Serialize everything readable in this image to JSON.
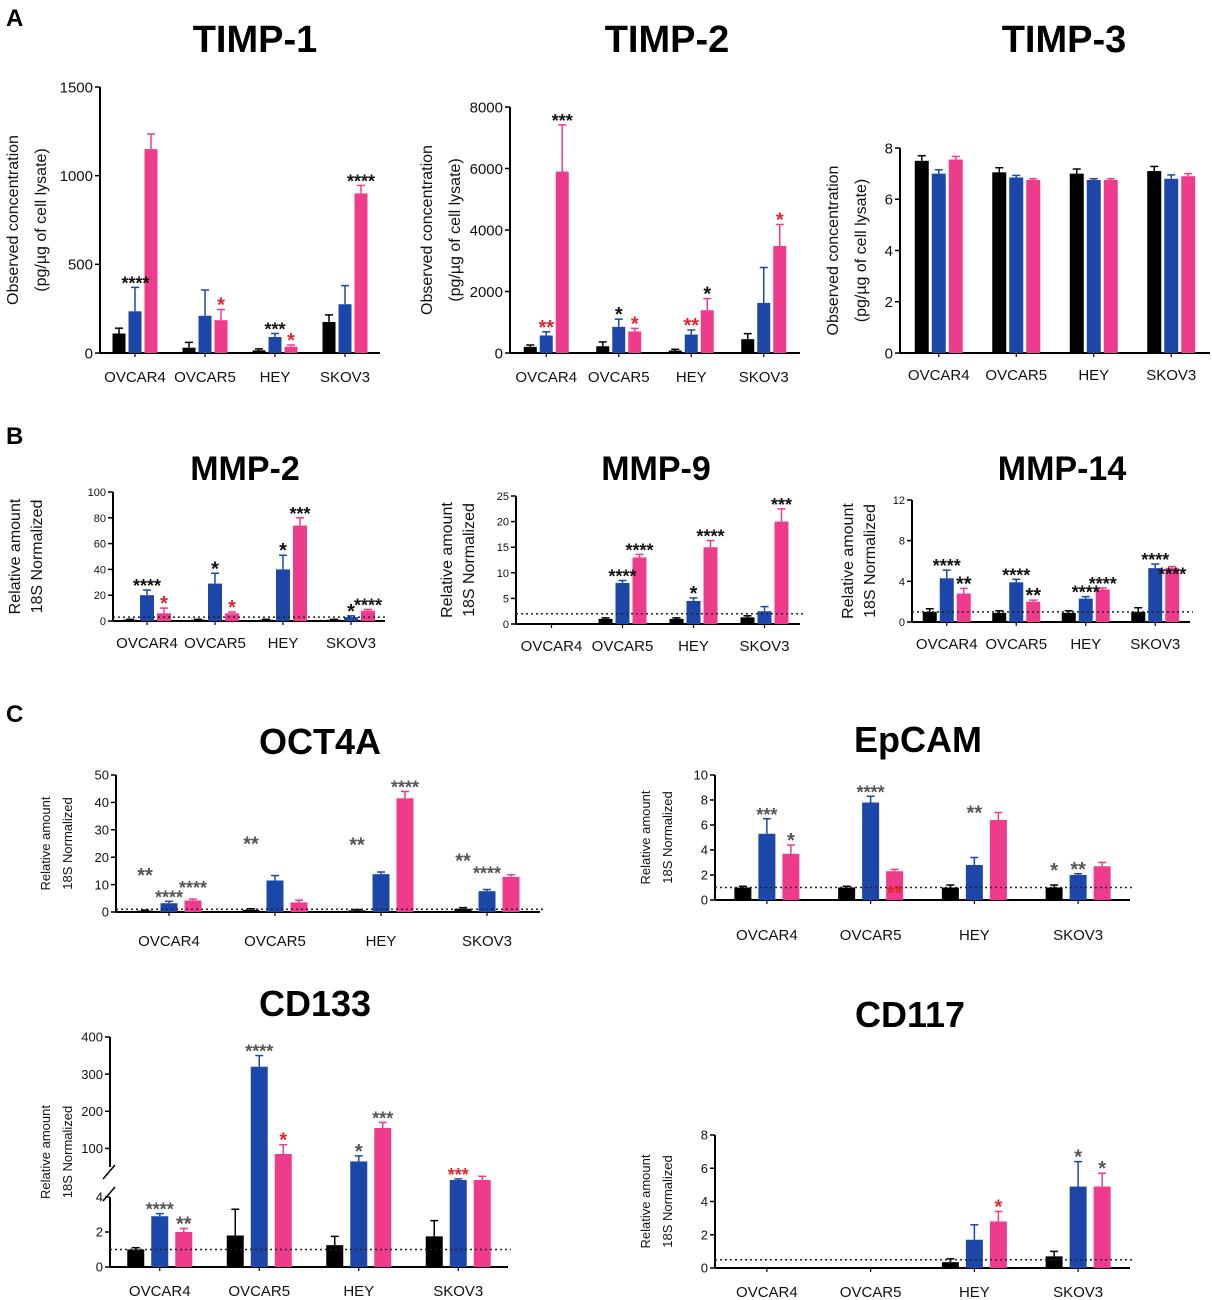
{
  "colors": {
    "series": [
      "#000000",
      "#1c47a8",
      "#ef3b8c"
    ],
    "star_black": "#111111",
    "star_red": "#e0252b",
    "star_grey": "#555555"
  },
  "panel_labels": [
    "A",
    "B",
    "C"
  ],
  "chart_data": [
    {
      "id": "timp1",
      "type": "bar",
      "title": "TIMP-1",
      "ylabel": [
        "Observed concentration",
        "(pg/µg of cell lysate)"
      ],
      "ylim": [
        0,
        1500
      ],
      "ticks": [
        0,
        500,
        1000,
        1500
      ],
      "categories": [
        "OVCAR4",
        "OVCAR5",
        "HEY",
        "SKOV3"
      ],
      "series": [
        {
          "values": [
            110,
            30,
            15,
            175
          ],
          "errors": [
            30,
            30,
            8,
            40
          ]
        },
        {
          "values": [
            235,
            210,
            90,
            275
          ],
          "errors": [
            135,
            145,
            20,
            105
          ]
        },
        {
          "values": [
            1150,
            185,
            35,
            900
          ],
          "errors": [
            85,
            60,
            10,
            45
          ]
        }
      ],
      "annotations": [
        {
          "text": "****",
          "cat": 0,
          "series": 1,
          "color": "black",
          "dx": 0.5
        },
        {
          "text": "*",
          "cat": 1,
          "series": 2,
          "color": "red"
        },
        {
          "text": "***",
          "cat": 2,
          "series": 1,
          "color": "black"
        },
        {
          "text": "*",
          "cat": 2,
          "series": 2,
          "color": "red"
        },
        {
          "text": "****",
          "cat": 3,
          "series": 2,
          "color": "black"
        }
      ]
    },
    {
      "id": "timp2",
      "type": "bar",
      "title": "TIMP-2",
      "ylabel": [
        "Observed concentration",
        "(pg/µg of cell lysate)"
      ],
      "ylim": [
        0,
        8000
      ],
      "ticks": [
        0,
        2000,
        4000,
        6000,
        8000
      ],
      "categories": [
        "OVCAR4",
        "OVCAR5",
        "HEY",
        "SKOV3"
      ],
      "series": [
        {
          "values": [
            200,
            220,
            80,
            450
          ],
          "errors": [
            60,
            140,
            40,
            180
          ]
        },
        {
          "values": [
            570,
            850,
            600,
            1630
          ],
          "errors": [
            120,
            250,
            150,
            1150
          ]
        },
        {
          "values": [
            5900,
            700,
            1390,
            3480
          ],
          "errors": [
            1520,
            100,
            380,
            700
          ]
        }
      ],
      "annotations": [
        {
          "text": "**",
          "cat": 0,
          "series": 1,
          "color": "red"
        },
        {
          "text": "***",
          "cat": 0,
          "series": 2,
          "color": "black"
        },
        {
          "text": "*",
          "cat": 1,
          "series": 1,
          "color": "black"
        },
        {
          "text": "*",
          "cat": 1,
          "series": 2,
          "color": "red"
        },
        {
          "text": "**",
          "cat": 2,
          "series": 1,
          "color": "red"
        },
        {
          "text": "*",
          "cat": 2,
          "series": 2,
          "color": "black"
        },
        {
          "text": "*",
          "cat": 3,
          "series": 2,
          "color": "red"
        }
      ]
    },
    {
      "id": "timp3",
      "type": "bar",
      "title": "TIMP-3",
      "ylabel": [
        "Observed concentration",
        "(pg/µg of cell lysate)"
      ],
      "ylim": [
        0,
        8
      ],
      "ticks": [
        0,
        2,
        4,
        6,
        8
      ],
      "categories": [
        "OVCAR4",
        "OVCAR5",
        "HEY",
        "SKOV3"
      ],
      "series": [
        {
          "values": [
            7.5,
            7.05,
            7.0,
            7.1
          ],
          "errors": [
            0.2,
            0.18,
            0.18,
            0.18
          ]
        },
        {
          "values": [
            7.0,
            6.85,
            6.75,
            6.8
          ],
          "errors": [
            0.15,
            0.08,
            0.05,
            0.15
          ]
        },
        {
          "values": [
            7.55,
            6.75,
            6.75,
            6.9
          ],
          "errors": [
            0.12,
            0.05,
            0.05,
            0.1
          ]
        }
      ],
      "annotations": []
    },
    {
      "id": "mmp2",
      "type": "bar",
      "title": "MMP-2",
      "ylabel": [
        "Relative amount",
        "18S Normalized"
      ],
      "ylim": [
        0,
        100
      ],
      "ticks": [
        0,
        20,
        40,
        60,
        80,
        100
      ],
      "categories": [
        "OVCAR4",
        "OVCAR5",
        "HEY",
        "SKOV3"
      ],
      "refline": 3,
      "series": [
        {
          "values": [
            1,
            1,
            1,
            1
          ],
          "errors": [
            0.3,
            0.3,
            0.3,
            0.3
          ]
        },
        {
          "values": [
            20,
            29,
            40,
            3
          ],
          "errors": [
            4,
            8,
            11,
            1
          ]
        },
        {
          "values": [
            6,
            6,
            74,
            8
          ],
          "errors": [
            4,
            1,
            6,
            1
          ]
        }
      ],
      "annotations": [
        {
          "text": "****",
          "cat": 0,
          "series": 1,
          "color": "black"
        },
        {
          "text": "*",
          "cat": 0,
          "series": 2,
          "color": "red"
        },
        {
          "text": "*",
          "cat": 1,
          "series": 1,
          "color": "black"
        },
        {
          "text": "*",
          "cat": 1,
          "series": 2,
          "color": "red"
        },
        {
          "text": "*",
          "cat": 2,
          "series": 1,
          "color": "black"
        },
        {
          "text": "***",
          "cat": 2,
          "series": 2,
          "color": "black"
        },
        {
          "text": "*",
          "cat": 3,
          "series": 1,
          "color": "black"
        },
        {
          "text": "****",
          "cat": 3,
          "series": 2,
          "color": "black"
        }
      ]
    },
    {
      "id": "mmp9",
      "type": "bar",
      "title": "MMP-9",
      "ylabel": [
        "Relative amount",
        "18S Normalized"
      ],
      "ylim": [
        0,
        25
      ],
      "ticks": [
        0,
        5,
        10,
        15,
        20,
        25
      ],
      "categories": [
        "OVCAR4",
        "OVCAR5",
        "HEY",
        "SKOV3"
      ],
      "refline": 2,
      "series": [
        {
          "values": [
            0,
            1,
            1,
            1.3
          ],
          "errors": [
            0,
            0.2,
            0.2,
            0.3
          ]
        },
        {
          "values": [
            0,
            8,
            4.5,
            2.5
          ],
          "errors": [
            0,
            0.5,
            0.6,
            0.9
          ]
        },
        {
          "values": [
            0,
            13,
            15,
            20
          ],
          "errors": [
            0,
            0.6,
            1.3,
            2.5
          ]
        }
      ],
      "annotations": [
        {
          "text": "****",
          "cat": 1,
          "series": 1,
          "color": "black"
        },
        {
          "text": "****",
          "cat": 1,
          "series": 2,
          "color": "black"
        },
        {
          "text": "*",
          "cat": 2,
          "series": 1,
          "color": "black"
        },
        {
          "text": "****",
          "cat": 2,
          "series": 2,
          "color": "black"
        },
        {
          "text": "***",
          "cat": 3,
          "series": 2,
          "color": "black"
        }
      ]
    },
    {
      "id": "mmp14",
      "type": "bar",
      "title": "MMP-14",
      "ylabel": [
        "Relative amount",
        "18S Normalized"
      ],
      "ylim": [
        0,
        12
      ],
      "ticks": [
        0,
        4,
        8,
        12
      ],
      "categories": [
        "OVCAR4",
        "OVCAR5",
        "HEY",
        "SKOV3"
      ],
      "refline": 1,
      "series": [
        {
          "values": [
            1,
            0.9,
            0.9,
            1
          ],
          "errors": [
            0.3,
            0.2,
            0.2,
            0.4
          ]
        },
        {
          "values": [
            4.3,
            3.9,
            2.3,
            5.3
          ],
          "errors": [
            0.8,
            0.3,
            0.2,
            0.4
          ]
        },
        {
          "values": [
            2.8,
            2.0,
            3.2,
            5.3
          ],
          "errors": [
            0.5,
            0.15,
            0.15,
            0.15
          ]
        }
      ],
      "annotations": [
        {
          "text": "****",
          "cat": 0,
          "series": 1,
          "color": "black"
        },
        {
          "text": "**",
          "cat": 0,
          "series": 2,
          "color": "black"
        },
        {
          "text": "****",
          "cat": 1,
          "series": 1,
          "color": "black"
        },
        {
          "text": "**",
          "cat": 1,
          "series": 2,
          "color": "black"
        },
        {
          "text": "****",
          "cat": 2,
          "series": 1,
          "color": "black"
        },
        {
          "text": "****",
          "cat": 2,
          "series": 2,
          "color": "black"
        },
        {
          "text": "****",
          "cat": 3,
          "series": 1,
          "color": "black"
        },
        {
          "text": "****",
          "cat": 3,
          "series": 2,
          "color": "black",
          "dy": 12
        }
      ]
    },
    {
      "id": "oct4a",
      "type": "bar",
      "title": "OCT4A",
      "ylabel": [
        "Relative amount",
        "18S Normalized"
      ],
      "ylim": [
        0,
        50
      ],
      "ticks": [
        0,
        10,
        20,
        30,
        40,
        50
      ],
      "categories": [
        "OVCAR4",
        "OVCAR5",
        "HEY",
        "SKOV3"
      ],
      "refline": 1,
      "series": [
        {
          "values": [
            0.5,
            0.8,
            0.6,
            1.2
          ],
          "errors": [
            0.2,
            0.4,
            0.3,
            0.4
          ]
        },
        {
          "values": [
            3.2,
            11.5,
            13.8,
            7.6
          ],
          "errors": [
            0.7,
            1.8,
            0.8,
            0.6
          ]
        },
        {
          "values": [
            4.2,
            3.5,
            41.5,
            12.8
          ],
          "errors": [
            0.5,
            0.8,
            2.5,
            0.8
          ]
        }
      ],
      "annotations": [
        {
          "text": "**",
          "cat": 0,
          "series": 0,
          "color": "grey",
          "dy": -30
        },
        {
          "text": "****",
          "cat": 0,
          "series": 1,
          "color": "grey"
        },
        {
          "text": "****",
          "cat": 0,
          "series": 2,
          "color": "grey",
          "dy": -7
        },
        {
          "text": "**",
          "cat": 1,
          "series": 0,
          "color": "grey",
          "dy": -60
        },
        {
          "text": "**",
          "cat": 2,
          "series": 0,
          "color": "grey",
          "dy": -60
        },
        {
          "text": "****",
          "cat": 2,
          "series": 2,
          "color": "grey"
        },
        {
          "text": "**",
          "cat": 3,
          "series": 0,
          "color": "grey",
          "dy": -42
        },
        {
          "text": "****",
          "cat": 3,
          "series": 1,
          "color": "grey",
          "dy": -12
        }
      ]
    },
    {
      "id": "epcam",
      "type": "bar",
      "title": "EpCAM",
      "ylabel": [
        "Relative amount",
        "18S Normalized"
      ],
      "ylim": [
        0,
        10
      ],
      "ticks": [
        0,
        2,
        4,
        6,
        8,
        10
      ],
      "categories": [
        "OVCAR4",
        "OVCAR5",
        "HEY",
        "SKOV3"
      ],
      "refline": 1,
      "series": [
        {
          "values": [
            1.0,
            1.0,
            1.0,
            1.0
          ],
          "errors": [
            0.1,
            0.1,
            0.2,
            0.2
          ]
        },
        {
          "values": [
            5.3,
            7.8,
            2.8,
            2.0
          ],
          "errors": [
            1.2,
            0.5,
            0.6,
            0.1
          ]
        },
        {
          "values": [
            3.7,
            2.3,
            6.4,
            2.7
          ],
          "errors": [
            0.7,
            0.15,
            0.6,
            0.3
          ]
        }
      ],
      "annotations": [
        {
          "text": "***",
          "cat": 0,
          "series": 1,
          "color": "grey"
        },
        {
          "text": "*",
          "cat": 0,
          "series": 2,
          "color": "grey"
        },
        {
          "text": "****",
          "cat": 1,
          "series": 1,
          "color": "grey"
        },
        {
          "text": "**",
          "cat": 1,
          "series": 2,
          "color": "red",
          "dy": 28
        },
        {
          "text": "**",
          "cat": 2,
          "series": 1,
          "color": "grey",
          "dy": -40
        },
        {
          "text": "*",
          "cat": 3,
          "series": 0,
          "color": "grey",
          "dy": -10
        },
        {
          "text": "**",
          "cat": 3,
          "series": 1,
          "color": "grey"
        }
      ]
    },
    {
      "id": "cd133",
      "type": "bar",
      "title": "CD133",
      "ylabel": [
        "Relative amount",
        "18S Normalized"
      ],
      "broken_axis": {
        "lower_max": 4,
        "upper_min": 50,
        "upper_max": 400
      },
      "ticks_lower": [
        0,
        2,
        4
      ],
      "ticks_upper": [
        100,
        200,
        300,
        400
      ],
      "categories": [
        "OVCAR4",
        "OVCAR5",
        "HEY",
        "SKOV3"
      ],
      "refline": 1,
      "series": [
        {
          "values": [
            1.0,
            1.8,
            1.25,
            1.75
          ],
          "errors": [
            0.1,
            1.5,
            0.5,
            0.9
          ]
        },
        {
          "values": [
            2.9,
            320,
            65,
            15
          ],
          "errors": [
            0.15,
            30,
            15,
            3
          ]
        },
        {
          "values": [
            2.0,
            85,
            155,
            15
          ],
          "errors": [
            0.2,
            25,
            15,
            10
          ]
        }
      ],
      "annotations": [
        {
          "text": "****",
          "cat": 0,
          "series": 1,
          "color": "grey"
        },
        {
          "text": "**",
          "cat": 0,
          "series": 2,
          "color": "grey"
        },
        {
          "text": "****",
          "cat": 1,
          "series": 1,
          "color": "grey"
        },
        {
          "text": "*",
          "cat": 1,
          "series": 2,
          "color": "red"
        },
        {
          "text": "*",
          "cat": 2,
          "series": 1,
          "color": "grey"
        },
        {
          "text": "***",
          "cat": 2,
          "series": 2,
          "color": "grey"
        },
        {
          "text": "***",
          "cat": 3,
          "series": 1,
          "color": "red"
        }
      ]
    },
    {
      "id": "cd117",
      "type": "bar",
      "title": "CD117",
      "ylabel": [
        "Relative amount",
        "18S Normalized"
      ],
      "ylim": [
        0,
        8
      ],
      "ticks": [
        0,
        2,
        4,
        6,
        8
      ],
      "categories": [
        "OVCAR4",
        "OVCAR5",
        "HEY",
        "SKOV3"
      ],
      "refline": 0.5,
      "series": [
        {
          "values": [
            0,
            0,
            0.35,
            0.7
          ],
          "errors": [
            0,
            0,
            0.2,
            0.3
          ]
        },
        {
          "values": [
            0,
            0,
            1.7,
            4.9
          ],
          "errors": [
            0,
            0,
            0.9,
            1.5
          ]
        },
        {
          "values": [
            0,
            0,
            2.8,
            4.9
          ],
          "errors": [
            0,
            0,
            0.6,
            0.8
          ]
        }
      ],
      "annotations": [
        {
          "text": "*",
          "cat": 2,
          "series": 2,
          "color": "red"
        },
        {
          "text": "*",
          "cat": 3,
          "series": 1,
          "color": "grey"
        },
        {
          "text": "*",
          "cat": 3,
          "series": 2,
          "color": "grey"
        }
      ]
    }
  ]
}
